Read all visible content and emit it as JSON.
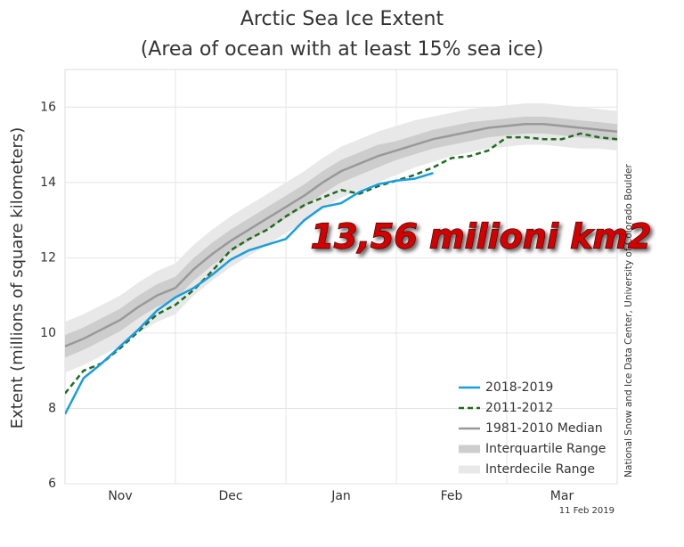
{
  "chart_data": {
    "type": "line",
    "title": "Arctic Sea Ice Extent",
    "subtitle": "(Area of ocean with at least 15% sea ice)",
    "ylabel": "Extent (millions of square kilometers)",
    "credit": "National Snow and Ice Data Center, University of Colorado Boulder",
    "date": "11 Feb 2019",
    "annotation": "13,56 milioni km2",
    "categories": [
      null,
      null,
      null,
      "Nov",
      null,
      null,
      null,
      null,
      null,
      "Dec",
      null,
      null,
      null,
      null,
      null,
      "Jan",
      null,
      null,
      null,
      null,
      null,
      "Feb",
      null,
      null,
      null,
      null,
      null,
      "Mar",
      null,
      null,
      null
    ],
    "ylim": [
      6,
      17
    ],
    "yticks": [
      6,
      8,
      10,
      12,
      14,
      16
    ],
    "grid": true,
    "legend": "lower right",
    "series": [
      {
        "name": "2018-2019",
        "color": "#1a9ee0",
        "style": "solid",
        "values": [
          7.85,
          8.8,
          9.2,
          9.65,
          10.1,
          10.6,
          10.95,
          11.2,
          11.55,
          11.95,
          12.2,
          12.35,
          12.5,
          13.0,
          13.35,
          13.45,
          13.75,
          13.95,
          14.05,
          14.1,
          14.25,
          null,
          null,
          null,
          null,
          null,
          null,
          null,
          null,
          null,
          null
        ]
      },
      {
        "name": "2011-2012",
        "color": "#1f6b1f",
        "style": "dashed",
        "values": [
          8.4,
          9.0,
          9.2,
          9.6,
          10.05,
          10.5,
          10.75,
          11.15,
          11.65,
          12.2,
          12.5,
          12.75,
          13.1,
          13.4,
          13.6,
          13.8,
          13.7,
          13.9,
          14.05,
          14.2,
          14.4,
          14.65,
          14.7,
          14.85,
          15.2,
          15.2,
          15.15,
          15.15,
          15.3,
          15.2,
          15.15
        ]
      },
      {
        "name": "1981-2010 Median",
        "color": "#999999",
        "style": "solid",
        "values": [
          9.65,
          9.85,
          10.1,
          10.35,
          10.7,
          11.0,
          11.2,
          11.7,
          12.1,
          12.45,
          12.75,
          13.05,
          13.35,
          13.65,
          14.0,
          14.3,
          14.5,
          14.7,
          14.85,
          15.0,
          15.15,
          15.25,
          15.35,
          15.45,
          15.5,
          15.55,
          15.55,
          15.5,
          15.45,
          15.4,
          15.35
        ]
      },
      {
        "name": "Interquartile Range",
        "color": "#cdcdcd",
        "style": "band",
        "low": [
          9.35,
          9.55,
          9.8,
          10.05,
          10.4,
          10.7,
          10.9,
          11.4,
          11.8,
          12.15,
          12.45,
          12.75,
          13.05,
          13.35,
          13.7,
          14.0,
          14.2,
          14.4,
          14.6,
          14.75,
          14.9,
          15.0,
          15.1,
          15.2,
          15.25,
          15.3,
          15.3,
          15.25,
          15.2,
          15.15,
          15.1
        ],
        "high": [
          9.95,
          10.15,
          10.4,
          10.65,
          11.0,
          11.3,
          11.5,
          12.0,
          12.4,
          12.75,
          13.05,
          13.35,
          13.65,
          13.95,
          14.3,
          14.6,
          14.8,
          15.0,
          15.1,
          15.25,
          15.4,
          15.5,
          15.6,
          15.65,
          15.7,
          15.75,
          15.75,
          15.7,
          15.65,
          15.6,
          15.55
        ]
      },
      {
        "name": "Interdecile Range",
        "color": "#e8e8e8",
        "style": "band",
        "low": [
          8.95,
          9.15,
          9.4,
          9.65,
          10.0,
          10.3,
          10.5,
          11.0,
          11.4,
          11.75,
          12.05,
          12.35,
          12.65,
          12.95,
          13.3,
          13.6,
          13.8,
          14.0,
          14.2,
          14.4,
          14.55,
          14.7,
          14.8,
          14.9,
          14.95,
          15.0,
          15.0,
          14.95,
          14.9,
          14.9,
          14.85
        ],
        "high": [
          10.3,
          10.5,
          10.75,
          11.0,
          11.35,
          11.65,
          11.85,
          12.35,
          12.75,
          13.1,
          13.4,
          13.7,
          14.0,
          14.3,
          14.65,
          14.95,
          15.15,
          15.35,
          15.5,
          15.65,
          15.75,
          15.85,
          15.95,
          16.0,
          16.05,
          16.1,
          16.1,
          16.05,
          16.0,
          15.95,
          15.9
        ]
      }
    ]
  }
}
